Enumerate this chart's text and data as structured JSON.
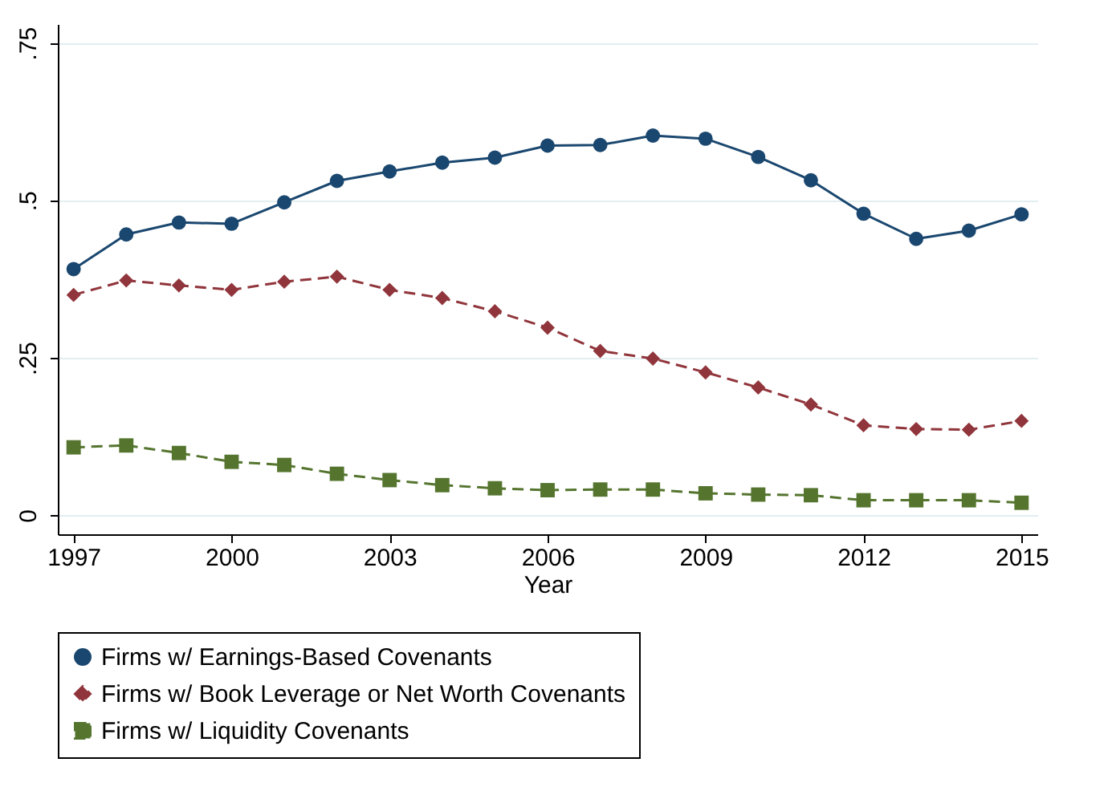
{
  "chart_data": {
    "type": "line",
    "xlabel": "Year",
    "x": [
      1997,
      1998,
      1999,
      2000,
      2001,
      2002,
      2003,
      2004,
      2005,
      2006,
      2007,
      2008,
      2009,
      2010,
      2011,
      2012,
      2013,
      2014,
      2015
    ],
    "series": [
      {
        "name": "Firms w/ Earnings-Based Covenants",
        "color": "#1a476f",
        "marker": "circle",
        "line_style": "solid",
        "values": [
          0.391,
          0.446,
          0.465,
          0.463,
          0.497,
          0.531,
          0.546,
          0.56,
          0.568,
          0.587,
          0.588,
          0.603,
          0.598,
          0.569,
          0.532,
          0.479,
          0.439,
          0.452,
          0.478
        ]
      },
      {
        "name": "Firms w/ Book Leverage or Net Worth Covenants",
        "color": "#90353b",
        "marker": "diamond",
        "line_style": "dashed",
        "values": [
          0.35,
          0.373,
          0.365,
          0.358,
          0.371,
          0.379,
          0.358,
          0.345,
          0.324,
          0.298,
          0.261,
          0.249,
          0.227,
          0.203,
          0.176,
          0.143,
          0.137,
          0.136,
          0.15
        ]
      },
      {
        "name": "Firms w/ Liquidity Covenants",
        "color": "#55752f",
        "marker": "square",
        "line_style": "dashed",
        "values": [
          0.108,
          0.111,
          0.099,
          0.085,
          0.08,
          0.066,
          0.056,
          0.048,
          0.043,
          0.04,
          0.041,
          0.041,
          0.035,
          0.033,
          0.032,
          0.024,
          0.024,
          0.024,
          0.02
        ]
      }
    ],
    "xlim": [
      1996.7,
      2015.3
    ],
    "xticks": [
      1997,
      2000,
      2003,
      2006,
      2009,
      2012,
      2015
    ],
    "ylim": [
      -0.03,
      0.78
    ],
    "yticks": [
      {
        "value": 0,
        "label": "0"
      },
      {
        "value": 0.25,
        "label": ".25"
      },
      {
        "value": 0.5,
        "label": ".5"
      },
      {
        "value": 0.75,
        "label": ".75"
      }
    ],
    "grid": "y",
    "legend": "bottom"
  }
}
